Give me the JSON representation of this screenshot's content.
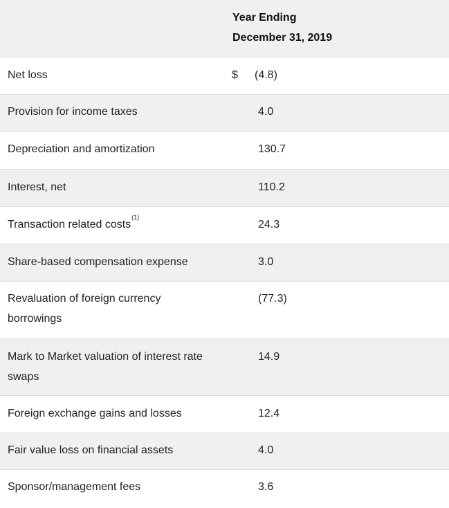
{
  "header": {
    "line1": "Year Ending",
    "line2": "December 31, 2019"
  },
  "rows": [
    {
      "label": "Net loss",
      "currency": "$",
      "value": "(4.8)"
    },
    {
      "label": "Provision for income taxes",
      "value": "4.0"
    },
    {
      "label": "Depreciation and amortization",
      "value": "130.7"
    },
    {
      "label": "Interest, net",
      "value": "110.2"
    },
    {
      "label": "Transaction related costs",
      "footnote": "(1)",
      "value": "24.3"
    },
    {
      "label": "Share-based compensation expense",
      "value": "3.0"
    },
    {
      "label": "Revaluation of foreign currency borrowings",
      "value": "(77.3)"
    },
    {
      "label": "Mark to Market valuation of interest rate swaps",
      "value": "14.9"
    },
    {
      "label": "Foreign exchange gains and losses",
      "value": "12.4"
    },
    {
      "label": "Fair value loss on financial assets",
      "value": "4.0"
    },
    {
      "label": "Sponsor/management fees",
      "value": "3.6"
    }
  ]
}
